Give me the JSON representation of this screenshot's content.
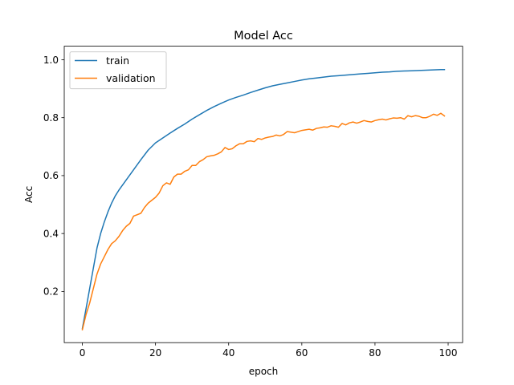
{
  "chart_data": {
    "type": "line",
    "title": "Model Acc",
    "xlabel": "epoch",
    "ylabel": "Acc",
    "xlim": [
      -4.95,
      103.95
    ],
    "ylim": [
      0.0233,
      1.0467
    ],
    "xticks": [
      0,
      20,
      40,
      60,
      80,
      100
    ],
    "yticks": [
      0.2,
      0.4,
      0.6,
      0.8,
      1.0
    ],
    "xtick_labels": [
      "0",
      "20",
      "40",
      "60",
      "80",
      "100"
    ],
    "ytick_labels": [
      "0.2",
      "0.4",
      "0.6",
      "0.8",
      "1.0"
    ],
    "grid": false,
    "legend": "top-left",
    "series": [
      {
        "name": "train",
        "color": "#1f77b4",
        "x": [
          0,
          1,
          2,
          3,
          4,
          5,
          6,
          7,
          8,
          9,
          10,
          12,
          14,
          16,
          18,
          20,
          22,
          24,
          26,
          28,
          30,
          32,
          34,
          36,
          38,
          40,
          42,
          44,
          46,
          48,
          50,
          52,
          54,
          56,
          58,
          60,
          62,
          64,
          66,
          68,
          70,
          72,
          74,
          76,
          78,
          80,
          82,
          84,
          86,
          88,
          90,
          92,
          94,
          96,
          98,
          99
        ],
        "y": [
          0.072,
          0.14,
          0.21,
          0.28,
          0.35,
          0.4,
          0.44,
          0.475,
          0.505,
          0.53,
          0.55,
          0.585,
          0.62,
          0.655,
          0.688,
          0.713,
          0.73,
          0.747,
          0.763,
          0.778,
          0.795,
          0.81,
          0.825,
          0.838,
          0.85,
          0.861,
          0.87,
          0.878,
          0.887,
          0.895,
          0.903,
          0.91,
          0.915,
          0.92,
          0.925,
          0.93,
          0.934,
          0.937,
          0.94,
          0.943,
          0.945,
          0.947,
          0.949,
          0.951,
          0.953,
          0.955,
          0.957,
          0.958,
          0.96,
          0.961,
          0.962,
          0.963,
          0.964,
          0.965,
          0.966,
          0.966
        ]
      },
      {
        "name": "validation",
        "color": "#ff7f0e",
        "x": [
          0,
          1,
          2,
          3,
          4,
          5,
          6,
          7,
          8,
          9,
          10,
          11,
          12,
          13,
          14,
          15,
          16,
          17,
          18,
          19,
          20,
          21,
          22,
          23,
          24,
          25,
          26,
          27,
          28,
          29,
          30,
          31,
          32,
          33,
          34,
          35,
          36,
          37,
          38,
          39,
          40,
          41,
          42,
          43,
          44,
          45,
          46,
          47,
          48,
          49,
          50,
          51,
          52,
          53,
          54,
          55,
          56,
          57,
          58,
          59,
          60,
          61,
          62,
          63,
          64,
          65,
          66,
          67,
          68,
          69,
          70,
          71,
          72,
          73,
          74,
          75,
          76,
          77,
          78,
          79,
          80,
          81,
          82,
          83,
          84,
          85,
          86,
          87,
          88,
          89,
          90,
          91,
          92,
          93,
          94,
          95,
          96,
          97,
          98,
          99
        ],
        "y": [
          0.068,
          0.12,
          0.16,
          0.21,
          0.26,
          0.295,
          0.32,
          0.345,
          0.365,
          0.375,
          0.39,
          0.41,
          0.425,
          0.435,
          0.46,
          0.465,
          0.47,
          0.49,
          0.505,
          0.515,
          0.525,
          0.54,
          0.565,
          0.575,
          0.57,
          0.595,
          0.605,
          0.605,
          0.615,
          0.62,
          0.635,
          0.635,
          0.648,
          0.655,
          0.665,
          0.668,
          0.67,
          0.675,
          0.682,
          0.697,
          0.69,
          0.693,
          0.703,
          0.71,
          0.71,
          0.718,
          0.72,
          0.717,
          0.728,
          0.725,
          0.73,
          0.733,
          0.735,
          0.74,
          0.737,
          0.742,
          0.752,
          0.75,
          0.748,
          0.752,
          0.756,
          0.758,
          0.76,
          0.757,
          0.763,
          0.765,
          0.768,
          0.767,
          0.772,
          0.77,
          0.767,
          0.78,
          0.775,
          0.782,
          0.785,
          0.781,
          0.785,
          0.79,
          0.787,
          0.785,
          0.79,
          0.793,
          0.795,
          0.792,
          0.796,
          0.799,
          0.798,
          0.8,
          0.795,
          0.807,
          0.803,
          0.807,
          0.805,
          0.8,
          0.8,
          0.805,
          0.812,
          0.808,
          0.815,
          0.806
        ]
      }
    ]
  }
}
